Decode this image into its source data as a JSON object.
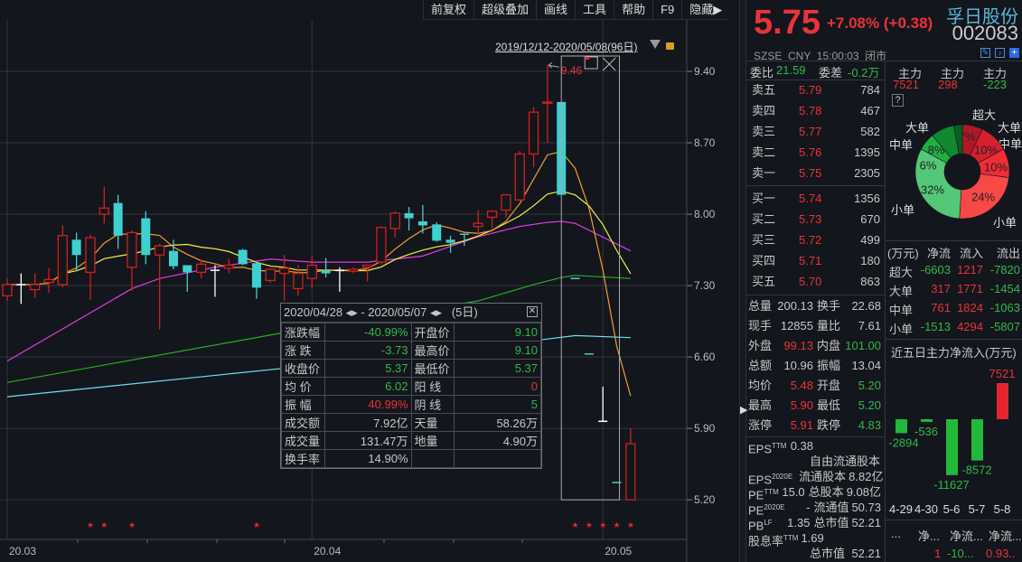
{
  "toolbar": {
    "items": [
      "前复权",
      "超级叠加",
      "画线",
      "工具",
      "帮助",
      "F9",
      "隐藏▶"
    ]
  },
  "chart": {
    "range_label": "2019/12/12-2020/05/08(96日)",
    "max_label": "9.46",
    "price_ticks": [
      "9.40",
      "8.70",
      "8.00",
      "7.30",
      "6.60",
      "5.90",
      "5.20"
    ],
    "price_tick_values": [
      9.4,
      8.7,
      8.0,
      7.3,
      6.6,
      5.9,
      5.2
    ],
    "time_labels": [
      {
        "label": "20.03",
        "date": "2020-03-02"
      },
      {
        "label": "20.04",
        "date": "2020-04-01"
      },
      {
        "label": "20.05",
        "date": "2020-05-06"
      }
    ],
    "colors": {
      "up": "#d0201c",
      "down": "#3dd1d0",
      "doji": "#ffffff",
      "ma5": "#f0a030",
      "ma10": "#f5f040",
      "ma20": "#e03ce0",
      "ma60": "#2ea82e",
      "ma120": "#70e0f0",
      "star": "#e8242c"
    },
    "candles": [
      [
        "2020-03-02",
        7.2,
        7.37,
        7.15,
        7.31
      ],
      [
        "2020-03-03",
        7.31,
        7.42,
        7.12,
        7.31
      ],
      [
        "2020-03-04",
        7.26,
        7.42,
        7.18,
        7.31
      ],
      [
        "2020-03-05",
        7.33,
        7.47,
        7.23,
        7.36
      ],
      [
        "2020-03-06",
        7.31,
        7.89,
        7.28,
        7.79
      ],
      [
        "2020-03-09",
        7.75,
        7.82,
        7.44,
        7.6
      ],
      [
        "2020-03-10",
        7.43,
        7.8,
        7.16,
        7.77
      ],
      [
        "2020-03-11",
        8.0,
        8.27,
        7.91,
        8.06
      ],
      [
        "2020-03-12",
        8.11,
        8.19,
        7.66,
        7.79
      ],
      [
        "2020-03-13",
        7.48,
        7.84,
        7.25,
        7.82
      ],
      [
        "2020-03-16",
        7.96,
        8.03,
        7.51,
        7.6
      ],
      [
        "2020-03-17",
        7.6,
        7.71,
        6.87,
        7.69
      ],
      [
        "2020-03-18",
        7.64,
        7.75,
        7.46,
        7.49
      ],
      [
        "2020-03-19",
        7.5,
        7.5,
        7.24,
        7.43
      ],
      [
        "2020-03-20",
        7.43,
        7.55,
        7.37,
        7.51
      ],
      [
        "2020-03-23",
        7.45,
        7.5,
        7.19,
        7.45
      ],
      [
        "2020-03-24",
        7.47,
        7.56,
        7.42,
        7.5
      ],
      [
        "2020-03-25",
        7.65,
        7.66,
        7.5,
        7.51
      ],
      [
        "2020-03-26",
        7.52,
        7.53,
        7.17,
        7.28
      ],
      [
        "2020-03-27",
        7.35,
        7.47,
        7.33,
        7.46
      ],
      [
        "2020-03-30",
        7.42,
        7.6,
        7.15,
        7.47
      ],
      [
        "2020-03-31",
        7.27,
        7.5,
        7.2,
        7.42
      ],
      [
        "2020-04-01",
        7.37,
        7.59,
        7.28,
        7.5
      ],
      [
        "2020-04-02",
        7.45,
        7.57,
        7.38,
        7.42
      ],
      [
        "2020-04-03",
        7.45,
        7.48,
        7.24,
        7.45
      ],
      [
        "2020-04-07",
        7.44,
        7.48,
        7.42,
        7.46
      ],
      [
        "2020-04-08",
        7.48,
        7.5,
        7.34,
        7.5
      ],
      [
        "2020-04-09",
        7.53,
        7.88,
        7.51,
        7.87
      ],
      [
        "2020-04-10",
        7.86,
        8.03,
        7.77,
        8.01
      ],
      [
        "2020-04-13",
        8.01,
        8.07,
        7.84,
        7.96
      ],
      [
        "2020-04-14",
        7.93,
        8.09,
        7.81,
        7.89
      ],
      [
        "2020-04-15",
        7.9,
        7.92,
        7.73,
        7.74
      ],
      [
        "2020-04-16",
        7.75,
        7.79,
        7.62,
        7.72
      ],
      [
        "2020-04-17",
        7.81,
        7.81,
        7.69,
        7.8
      ],
      [
        "2020-04-20",
        7.88,
        8.04,
        7.81,
        7.91
      ],
      [
        "2020-04-21",
        7.97,
        8.04,
        7.86,
        8.03
      ],
      [
        "2020-04-22",
        8.04,
        8.19,
        7.97,
        8.19
      ],
      [
        "2020-04-23",
        8.14,
        8.62,
        8.13,
        8.59
      ],
      [
        "2020-04-24",
        8.59,
        9.05,
        8.46,
        9.0
      ],
      [
        "2020-04-27",
        9.09,
        9.46,
        8.7,
        9.1
      ],
      [
        "2020-04-28",
        9.1,
        9.1,
        8.19,
        8.19
      ],
      [
        "2020-04-29",
        7.37,
        7.37,
        7.37,
        7.37
      ],
      [
        "2020-04-30",
        6.63,
        6.63,
        6.63,
        6.63
      ],
      [
        "2020-05-06",
        5.97,
        6.31,
        5.97,
        5.97
      ],
      [
        "2020-05-07",
        5.37,
        5.37,
        5.37,
        5.37
      ],
      [
        "2020-05-08",
        5.2,
        5.9,
        5.2,
        5.75
      ]
    ],
    "ma20": [
      [
        "2020-03-02",
        6.56
      ],
      [
        "2020-03-13",
        7.27
      ],
      [
        "2020-03-17",
        7.37
      ],
      [
        "2020-03-23",
        7.48
      ],
      [
        "2020-03-27",
        7.56
      ],
      [
        "2020-04-01",
        7.53
      ],
      [
        "2020-04-08",
        7.53
      ],
      [
        "2020-04-14",
        7.59
      ],
      [
        "2020-04-20",
        7.78
      ],
      [
        "2020-04-23",
        7.88
      ],
      [
        "2020-04-27",
        7.92
      ],
      [
        "2020-04-28",
        7.93
      ],
      [
        "2020-04-29",
        7.91
      ],
      [
        "2020-05-08",
        7.64
      ]
    ],
    "ma60": [
      [
        "2020-03-02",
        6.35
      ],
      [
        "2020-03-30",
        6.84
      ],
      [
        "2020-04-20",
        7.15
      ],
      [
        "2020-04-24",
        7.31
      ],
      [
        "2020-04-28",
        7.38
      ],
      [
        "2020-04-29",
        7.4
      ],
      [
        "2020-05-08",
        7.37
      ]
    ],
    "ma120": [
      [
        "2020-03-02",
        6.21
      ],
      [
        "2020-03-30",
        6.49
      ],
      [
        "2020-04-24",
        6.76
      ],
      [
        "2020-04-29",
        6.81
      ],
      [
        "2020-05-08",
        6.79
      ]
    ],
    "star_dates": [
      "2020-03-10",
      "2020-03-11",
      "2020-03-13",
      "2020-03-26",
      "2020-04-29",
      "2020-04-30",
      "2020-05-06",
      "2020-05-07",
      "2020-05-08"
    ],
    "selection": {
      "from": "2020-04-28",
      "to": "2020-05-07"
    }
  },
  "tooltip": {
    "header": "2020/04/28 ◂▸ - 2020/05/07 ◂▸   (5日)",
    "rows": [
      [
        {
          "t": "涨跌幅"
        },
        {
          "t": "-40.99%",
          "c": "green"
        },
        {
          "t": "开盘价"
        },
        {
          "t": "9.10",
          "c": "green"
        }
      ],
      [
        {
          "t": "涨  跌"
        },
        {
          "t": "-3.73",
          "c": "green"
        },
        {
          "t": "最高价"
        },
        {
          "t": "9.10",
          "c": "green"
        }
      ],
      [
        {
          "t": "收盘价"
        },
        {
          "t": "5.37",
          "c": "green"
        },
        {
          "t": "最低价"
        },
        {
          "t": "5.37",
          "c": "green"
        }
      ],
      [
        {
          "t": "均  价"
        },
        {
          "t": "6.02",
          "c": "green"
        },
        {
          "t": "阳  线"
        },
        {
          "t": "0",
          "c": "red"
        }
      ],
      [
        {
          "t": "振  幅"
        },
        {
          "t": "40.99%",
          "c": "red"
        },
        {
          "t": "阴  线"
        },
        {
          "t": "5",
          "c": "green"
        }
      ],
      [
        {
          "t": "成交额"
        },
        {
          "t": "7.92亿"
        },
        {
          "t": "天量"
        },
        {
          "t": "58.26万"
        }
      ],
      [
        {
          "t": "成交量"
        },
        {
          "t": "131.47万"
        },
        {
          "t": "地量"
        },
        {
          "t": "4.90万"
        }
      ],
      [
        {
          "t": "换手率"
        },
        {
          "t": "14.90%"
        },
        {
          "t": ""
        },
        {
          "t": ""
        }
      ]
    ]
  },
  "quote": {
    "price": "5.75",
    "change": "+7.08% (+0.38)",
    "name": "孚日股份",
    "code": "002083",
    "market": "SZSE  CNY  15:00:03  闭市"
  },
  "orderbook": {
    "weibi_label": "委比",
    "weibi": "21.59",
    "weicha_label": "委差",
    "weicha": "-0.2万",
    "sell": [
      [
        "卖五",
        "5.79",
        "784"
      ],
      [
        "卖四",
        "5.78",
        "467"
      ],
      [
        "卖三",
        "5.77",
        "582"
      ],
      [
        "卖二",
        "5.76",
        "1395"
      ],
      [
        "卖一",
        "5.75",
        "2305"
      ]
    ],
    "buy": [
      [
        "买一",
        "5.74",
        "1356"
      ],
      [
        "买二",
        "5.73",
        "670"
      ],
      [
        "买三",
        "5.72",
        "499"
      ],
      [
        "买四",
        "5.71",
        "180"
      ],
      [
        "买五",
        "5.70",
        "863"
      ]
    ]
  },
  "stats": [
    [
      {
        "t": "总量"
      },
      {
        "t": "200.13"
      },
      {
        "t": "换手"
      },
      {
        "t": "22.68"
      }
    ],
    [
      {
        "t": "现手"
      },
      {
        "t": "12855"
      },
      {
        "t": "量比"
      },
      {
        "t": "7.61"
      }
    ],
    [
      {
        "t": "外盘"
      },
      {
        "t": "99.13",
        "c": "red"
      },
      {
        "t": "内盘"
      },
      {
        "t": "101.00",
        "c": "green"
      }
    ],
    [
      {
        "t": "总额"
      },
      {
        "t": "10.96"
      },
      {
        "t": "振幅"
      },
      {
        "t": "13.04"
      }
    ],
    [
      {
        "t": "均价"
      },
      {
        "t": "5.48",
        "c": "red"
      },
      {
        "t": "开盘"
      },
      {
        "t": "5.20",
        "c": "green"
      }
    ],
    [
      {
        "t": "最高"
      },
      {
        "t": "5.90",
        "c": "red"
      },
      {
        "t": "最低"
      },
      {
        "t": "5.20",
        "c": "green"
      }
    ],
    [
      {
        "t": "涨停"
      },
      {
        "t": "5.91",
        "c": "red"
      },
      {
        "t": "跌停"
      },
      {
        "t": "4.83",
        "c": "green"
      }
    ]
  ],
  "fundamentals": [
    [
      {
        "t": "EPS",
        "sup": "TTM"
      },
      {
        "t": "0.38"
      },
      {
        "t": "自由流通股本"
      },
      {
        "t": ""
      }
    ],
    [
      {
        "t": "EPS",
        "sup": "2020E"
      },
      {
        "t": ""
      },
      {
        "t": "流通股本"
      },
      {
        "t": "8.82亿"
      }
    ],
    [
      {
        "t": "PE",
        "sup": "TTM"
      },
      {
        "t": "15.0"
      },
      {
        "t": "总股本"
      },
      {
        "t": "9.08亿"
      }
    ],
    [
      {
        "t": "PE",
        "sup": "2020E"
      },
      {
        "t": "-"
      },
      {
        "t": "流通值"
      },
      {
        "t": "50.73"
      }
    ],
    [
      {
        "t": "PB",
        "sup": "LF"
      },
      {
        "t": "1.35"
      },
      {
        "t": "总市值"
      },
      {
        "t": "52.21"
      }
    ],
    [
      {
        "t": "股息率",
        "sup": "TTM"
      },
      {
        "t": "1.69"
      },
      {
        "t": "总市值"
      },
      {
        "t": "52.21"
      }
    ]
  ],
  "mainforce": {
    "labels": [
      "主力",
      "主力",
      "主力"
    ],
    "values": [
      {
        "t": "7521",
        "c": "red"
      },
      {
        "t": "298",
        "c": "red"
      },
      {
        "t": "-223",
        "c": "green"
      }
    ],
    "help": "?"
  },
  "pie": {
    "slices": [
      {
        "label": "超大",
        "pct": 7,
        "color": "#b01828"
      },
      {
        "label": "大单",
        "pct": 10,
        "color": "#d42030"
      },
      {
        "label": "中单",
        "pct": 10,
        "color": "#f02c38"
      },
      {
        "label": "小单",
        "pct": 24,
        "color": "#f84848"
      },
      {
        "label": "小单",
        "pct": 32,
        "color": "#52c878"
      },
      {
        "label": "中单",
        "pct": 6,
        "color": "#20b040"
      },
      {
        "label": "大单",
        "pct": 8,
        "color": "#108a30"
      },
      {
        "label": "超大",
        "pct": 3,
        "color": "#0a5e22"
      }
    ]
  },
  "flow": {
    "headers": [
      "(万元)",
      "净流",
      "流入",
      "流出"
    ],
    "rows": [
      [
        "超大",
        "-6603",
        "1217",
        "-7820"
      ],
      [
        "大单",
        "317",
        "1771",
        "-1454"
      ],
      [
        "中单",
        "761",
        "1824",
        "-1063"
      ],
      [
        "小单",
        "-1513",
        "4294",
        "-5807"
      ]
    ],
    "row_colors": [
      [
        "green",
        "red",
        "green"
      ],
      [
        "red",
        "red",
        "green"
      ],
      [
        "red",
        "red",
        "green"
      ],
      [
        "green",
        "red",
        "green"
      ]
    ]
  },
  "five_day": {
    "title": "近五日主力净流入(万元)",
    "labels": [
      "4-29",
      "4-30",
      "5-6",
      "5-7",
      "5-8"
    ],
    "values": [
      -2894,
      -536,
      -11627,
      -8572,
      7521
    ]
  },
  "bottom_table": {
    "headers": [
      "...",
      "净...",
      "净流...",
      "净流..."
    ],
    "values": [
      {
        "t": "1",
        "c": "red"
      },
      {
        "t": "-10...",
        "c": "green"
      },
      {
        "t": "0.93..",
        "c": "red"
      }
    ]
  }
}
